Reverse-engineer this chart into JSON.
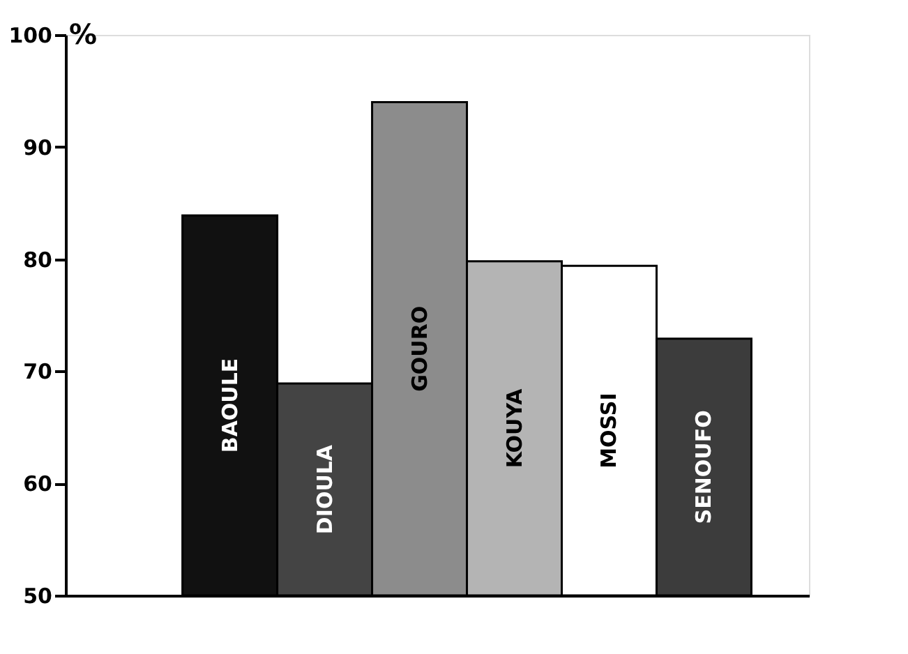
{
  "chart_data": {
    "type": "bar",
    "ylabel": "%",
    "categories": [
      "BAOULE",
      "DIOULA",
      "GOURO",
      "KOUYA",
      "MOSSI",
      "SENOUFO"
    ],
    "values": [
      83.9,
      68.9,
      94.0,
      79.8,
      79.4,
      72.9
    ],
    "colors": [
      "#111111",
      "#444444",
      "#8c8c8c",
      "#b4b4b4",
      "#ffffff",
      "#3c3c3c"
    ],
    "ylim": [
      50,
      100
    ],
    "yticks": [
      50,
      60,
      70,
      80,
      90,
      100
    ],
    "tick_labels": "y",
    "grid": false
  }
}
